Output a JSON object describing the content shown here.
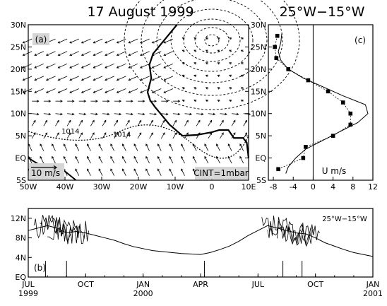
{
  "chart_data": [
    {
      "type": "map",
      "panel_label": "(a)",
      "title": "17 August 1999",
      "xlabel": "",
      "ylabel": "",
      "x_ticks": [
        "50W",
        "40W",
        "30W",
        "20W",
        "10W",
        "0",
        "10E"
      ],
      "y_ticks": [
        "5S",
        "EQ",
        "5N",
        "10N",
        "15N",
        "20N",
        "25N",
        "30N"
      ],
      "xlim": [
        -50,
        10
      ],
      "ylim": [
        -5,
        30
      ],
      "wind_reference_label": "10 m/s",
      "contour_interval_label": "CINT=1mbar",
      "isobar_labels": [
        "1014",
        "1014"
      ]
    },
    {
      "type": "scatter",
      "panel_label": "(c)",
      "title": "25°W−15°W",
      "xlabel": "U m/s",
      "ylabel": "",
      "x_ticks": [
        "-8",
        "-4",
        "0",
        "4",
        "8",
        "12"
      ],
      "y_ticks": [
        "5S",
        "EQ",
        "5N",
        "10N",
        "15N",
        "20N",
        "25N",
        "30N"
      ],
      "xlim": [
        -9,
        12
      ],
      "ylim": [
        -5,
        30
      ],
      "points": [
        {
          "x": -7.2,
          "y": 27.5
        },
        {
          "x": -7.7,
          "y": 25
        },
        {
          "x": -7.4,
          "y": 22.5
        },
        {
          "x": -5,
          "y": 20
        },
        {
          "x": -1,
          "y": 17.5
        },
        {
          "x": 3,
          "y": 15
        },
        {
          "x": 6,
          "y": 12.5
        },
        {
          "x": 7.5,
          "y": 10
        },
        {
          "x": 7.5,
          "y": 7.5
        },
        {
          "x": 4,
          "y": 5
        },
        {
          "x": -1.5,
          "y": 2.5
        },
        {
          "x": -2,
          "y": 0
        },
        {
          "x": -7,
          "y": -2.5
        }
      ],
      "curve": [
        {
          "x": -5.5,
          "y": -3.5
        },
        {
          "x": -5,
          "y": -2
        },
        {
          "x": -3.5,
          "y": 0
        },
        {
          "x": -1.5,
          "y": 2
        },
        {
          "x": 2,
          "y": 4
        },
        {
          "x": 5.5,
          "y": 6
        },
        {
          "x": 9,
          "y": 8
        },
        {
          "x": 11,
          "y": 10
        },
        {
          "x": 10.5,
          "y": 12
        },
        {
          "x": 6,
          "y": 14
        },
        {
          "x": 2,
          "y": 16
        },
        {
          "x": -2,
          "y": 18
        },
        {
          "x": -5,
          "y": 20
        },
        {
          "x": -6.5,
          "y": 22
        },
        {
          "x": -7,
          "y": 24
        },
        {
          "x": -6.5,
          "y": 26
        },
        {
          "x": -6.3,
          "y": 28
        }
      ]
    },
    {
      "type": "line",
      "panel_label": "(b)",
      "title": "",
      "series_label": "25°W−15°W",
      "xlabel": "",
      "ylabel": "",
      "x_ticks": [
        {
          "label": "JUL",
          "year": "1999"
        },
        {
          "label": "OCT",
          "year": ""
        },
        {
          "label": "JAN",
          "year": "2000"
        },
        {
          "label": "APR",
          "year": ""
        },
        {
          "label": "JUL",
          "year": ""
        },
        {
          "label": "OCT",
          "year": ""
        },
        {
          "label": "JAN",
          "year": "2001"
        }
      ],
      "y_ticks": [
        "EQ",
        "4N",
        "8N",
        "12N"
      ],
      "xlim": [
        0,
        18
      ],
      "ylim": [
        0,
        14
      ],
      "envelope": [
        {
          "x": 0,
          "y": 9.5
        },
        {
          "x": 0.5,
          "y": 10
        },
        {
          "x": 1,
          "y": 10.5
        },
        {
          "x": 1.5,
          "y": 10
        },
        {
          "x": 2,
          "y": 9
        },
        {
          "x": 2.5,
          "y": 9.3
        },
        {
          "x": 3,
          "y": 9
        },
        {
          "x": 3.5,
          "y": 8.5
        },
        {
          "x": 4,
          "y": 8
        },
        {
          "x": 4.5,
          "y": 7.5
        },
        {
          "x": 5,
          "y": 6.8
        },
        {
          "x": 5.5,
          "y": 6.2
        },
        {
          "x": 6,
          "y": 5.8
        },
        {
          "x": 6.5,
          "y": 5.4
        },
        {
          "x": 7,
          "y": 5.2
        },
        {
          "x": 7.5,
          "y": 5
        },
        {
          "x": 8,
          "y": 4.8
        },
        {
          "x": 8.5,
          "y": 4.7
        },
        {
          "x": 9,
          "y": 4.6
        },
        {
          "x": 9.5,
          "y": 5
        },
        {
          "x": 10,
          "y": 5.6
        },
        {
          "x": 10.5,
          "y": 6.3
        },
        {
          "x": 11,
          "y": 7.3
        },
        {
          "x": 11.5,
          "y": 8.5
        },
        {
          "x": 12,
          "y": 9.5
        },
        {
          "x": 12.5,
          "y": 10.5
        },
        {
          "x": 13,
          "y": 10
        },
        {
          "x": 13.5,
          "y": 9.5
        },
        {
          "x": 14,
          "y": 9
        },
        {
          "x": 14.5,
          "y": 8.8
        },
        {
          "x": 15,
          "y": 8
        },
        {
          "x": 15.5,
          "y": 7
        },
        {
          "x": 16,
          "y": 6.3
        },
        {
          "x": 16.5,
          "y": 5.6
        },
        {
          "x": 17,
          "y": 5
        },
        {
          "x": 17.5,
          "y": 4.6
        },
        {
          "x": 18,
          "y": 4.2
        }
      ]
    }
  ]
}
